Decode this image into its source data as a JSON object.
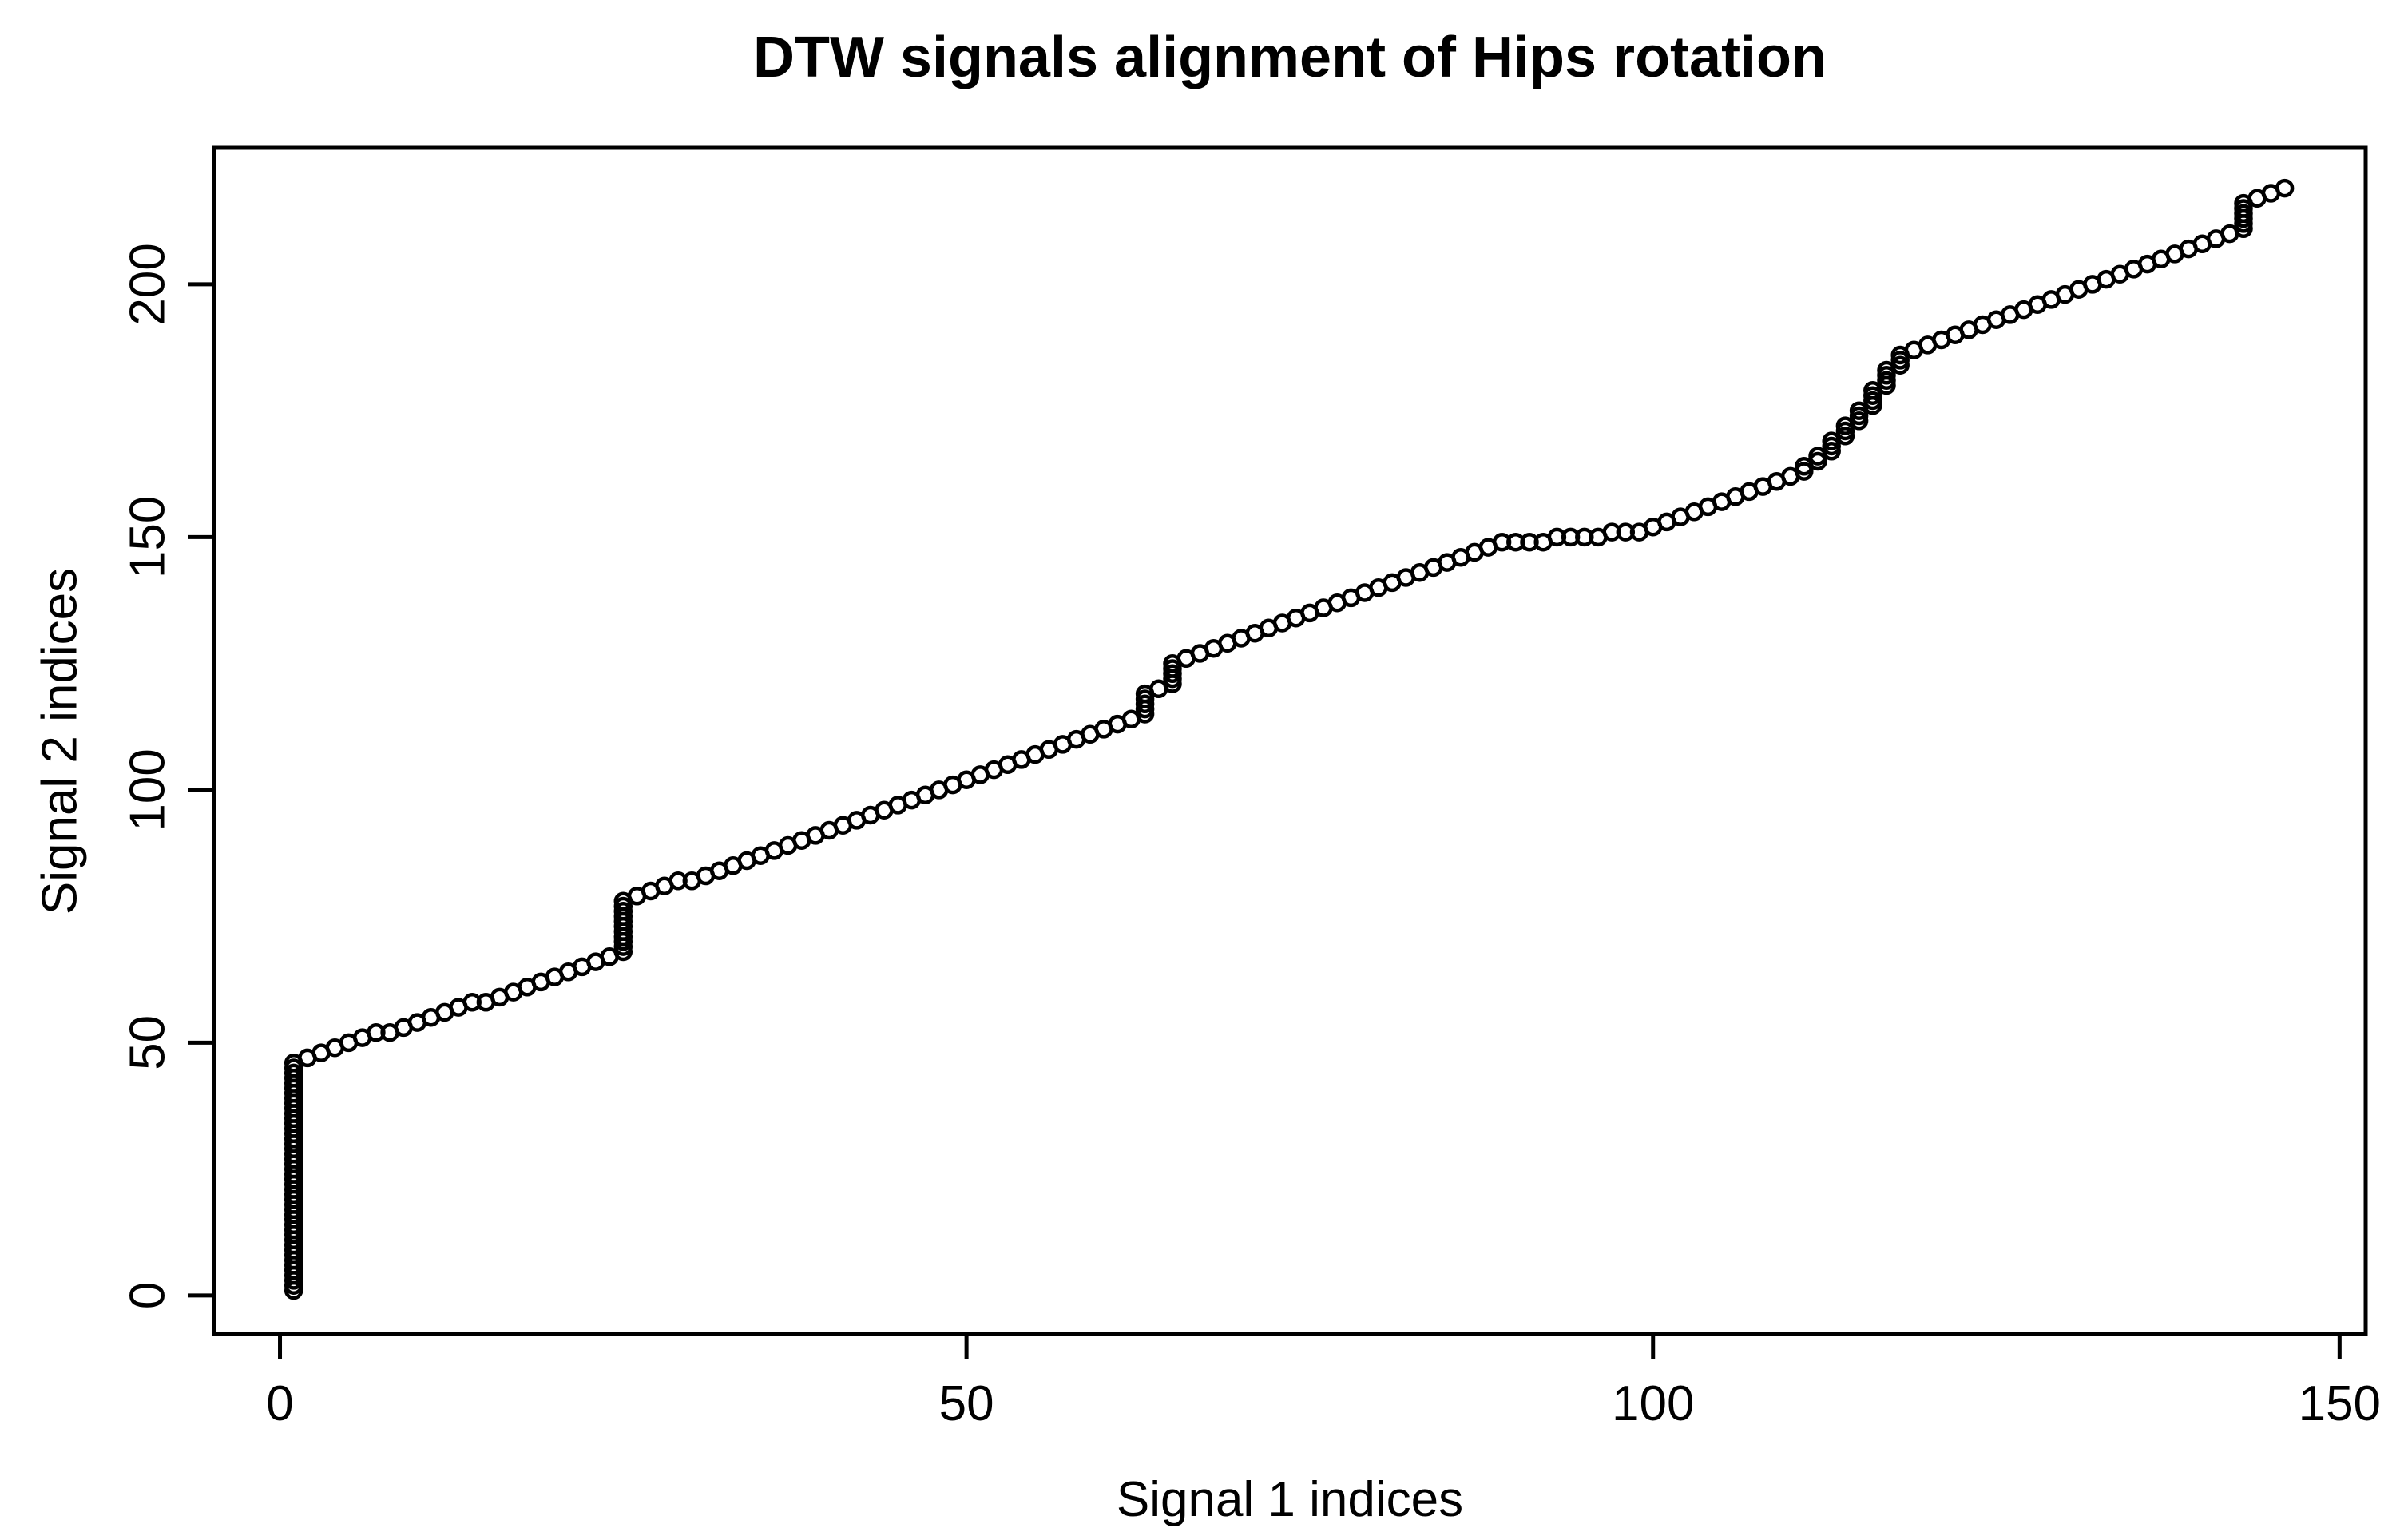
{
  "colors": {
    "foreground": "#000000",
    "background": "#ffffff"
  },
  "chart_data": {
    "type": "scatter",
    "title": "DTW signals alignment of Hips rotation",
    "xlabel": "Signal 1 indices",
    "ylabel": "Signal 2 indices",
    "marker": "open-circle",
    "marker_color": "#000000",
    "grid": false,
    "legend": "none",
    "x_ticks": [
      0,
      50,
      100,
      150
    ],
    "x_tick_labels": [
      "0",
      "50",
      "100",
      "150"
    ],
    "y_ticks": [
      0,
      50,
      100,
      150,
      200
    ],
    "y_tick_labels": [
      "0",
      "50",
      "100",
      "150",
      "200"
    ],
    "xlim": [
      -4.8,
      151.9
    ],
    "ylim": [
      -7.6,
      227.0
    ],
    "points_rle_format": "[signal1_index, signal2_index_start, signal2_index_end]",
    "points_rle": [
      [
        1,
        1,
        46
      ],
      [
        2,
        47,
        47
      ],
      [
        3,
        48,
        48
      ],
      [
        4,
        49,
        49
      ],
      [
        5,
        50,
        50
      ],
      [
        6,
        51,
        51
      ],
      [
        7,
        52,
        52
      ],
      [
        8,
        52,
        52
      ],
      [
        9,
        53,
        53
      ],
      [
        10,
        54,
        54
      ],
      [
        11,
        55,
        55
      ],
      [
        12,
        56,
        56
      ],
      [
        13,
        57,
        57
      ],
      [
        14,
        58,
        58
      ],
      [
        15,
        58,
        58
      ],
      [
        16,
        59,
        59
      ],
      [
        17,
        60,
        60
      ],
      [
        18,
        61,
        61
      ],
      [
        19,
        62,
        62
      ],
      [
        20,
        63,
        63
      ],
      [
        21,
        64,
        64
      ],
      [
        22,
        65,
        65
      ],
      [
        23,
        66,
        66
      ],
      [
        24,
        67,
        67
      ],
      [
        25,
        68,
        78
      ],
      [
        26,
        79,
        79
      ],
      [
        27,
        80,
        80
      ],
      [
        28,
        81,
        81
      ],
      [
        29,
        82,
        82
      ],
      [
        30,
        82,
        82
      ],
      [
        31,
        83,
        83
      ],
      [
        32,
        84,
        84
      ],
      [
        33,
        85,
        85
      ],
      [
        34,
        86,
        86
      ],
      [
        35,
        87,
        87
      ],
      [
        36,
        88,
        88
      ],
      [
        37,
        89,
        89
      ],
      [
        38,
        90,
        90
      ],
      [
        39,
        91,
        91
      ],
      [
        40,
        92,
        92
      ],
      [
        41,
        93,
        93
      ],
      [
        42,
        94,
        94
      ],
      [
        43,
        95,
        95
      ],
      [
        44,
        96,
        96
      ],
      [
        45,
        97,
        97
      ],
      [
        46,
        98,
        98
      ],
      [
        47,
        99,
        99
      ],
      [
        48,
        100,
        100
      ],
      [
        49,
        101,
        101
      ],
      [
        50,
        102,
        102
      ],
      [
        51,
        103,
        103
      ],
      [
        52,
        104,
        104
      ],
      [
        53,
        105,
        105
      ],
      [
        54,
        106,
        106
      ],
      [
        55,
        107,
        107
      ],
      [
        56,
        108,
        108
      ],
      [
        57,
        109,
        109
      ],
      [
        58,
        110,
        110
      ],
      [
        59,
        111,
        111
      ],
      [
        60,
        112,
        112
      ],
      [
        61,
        113,
        113
      ],
      [
        62,
        114,
        114
      ],
      [
        63,
        115,
        119
      ],
      [
        64,
        120,
        120
      ],
      [
        65,
        121,
        125
      ],
      [
        66,
        126,
        126
      ],
      [
        67,
        127,
        127
      ],
      [
        68,
        128,
        128
      ],
      [
        69,
        129,
        129
      ],
      [
        70,
        130,
        130
      ],
      [
        71,
        131,
        131
      ],
      [
        72,
        132,
        132
      ],
      [
        73,
        133,
        133
      ],
      [
        74,
        134,
        134
      ],
      [
        75,
        135,
        135
      ],
      [
        76,
        136,
        136
      ],
      [
        77,
        137,
        137
      ],
      [
        78,
        138,
        138
      ],
      [
        79,
        139,
        139
      ],
      [
        80,
        140,
        140
      ],
      [
        81,
        141,
        141
      ],
      [
        82,
        142,
        142
      ],
      [
        83,
        143,
        143
      ],
      [
        84,
        144,
        144
      ],
      [
        85,
        145,
        145
      ],
      [
        86,
        146,
        146
      ],
      [
        87,
        147,
        147
      ],
      [
        88,
        148,
        148
      ],
      [
        89,
        149,
        149
      ],
      [
        90,
        149,
        149
      ],
      [
        91,
        149,
        149
      ],
      [
        92,
        149,
        149
      ],
      [
        93,
        150,
        150
      ],
      [
        94,
        150,
        150
      ],
      [
        95,
        150,
        150
      ],
      [
        96,
        150,
        150
      ],
      [
        97,
        151,
        151
      ],
      [
        98,
        151,
        151
      ],
      [
        99,
        151,
        151
      ],
      [
        100,
        152,
        152
      ],
      [
        101,
        153,
        153
      ],
      [
        102,
        154,
        154
      ],
      [
        103,
        155,
        155
      ],
      [
        104,
        156,
        156
      ],
      [
        105,
        157,
        157
      ],
      [
        106,
        158,
        158
      ],
      [
        107,
        159,
        159
      ],
      [
        108,
        160,
        160
      ],
      [
        109,
        161,
        161
      ],
      [
        110,
        162,
        162
      ],
      [
        111,
        163,
        164
      ],
      [
        112,
        165,
        166
      ],
      [
        113,
        167,
        169
      ],
      [
        114,
        170,
        172
      ],
      [
        115,
        173,
        175
      ],
      [
        116,
        176,
        179
      ],
      [
        117,
        180,
        183
      ],
      [
        118,
        184,
        186
      ],
      [
        119,
        187,
        187
      ],
      [
        120,
        188,
        188
      ],
      [
        121,
        189,
        189
      ],
      [
        122,
        190,
        190
      ],
      [
        123,
        191,
        191
      ],
      [
        124,
        192,
        192
      ],
      [
        125,
        193,
        193
      ],
      [
        126,
        194,
        194
      ],
      [
        127,
        195,
        195
      ],
      [
        128,
        196,
        196
      ],
      [
        129,
        197,
        197
      ],
      [
        130,
        198,
        198
      ],
      [
        131,
        199,
        199
      ],
      [
        132,
        200,
        200
      ],
      [
        133,
        201,
        201
      ],
      [
        134,
        202,
        202
      ],
      [
        135,
        203,
        203
      ],
      [
        136,
        204,
        204
      ],
      [
        137,
        205,
        205
      ],
      [
        138,
        206,
        206
      ],
      [
        139,
        207,
        207
      ],
      [
        140,
        208,
        208
      ],
      [
        141,
        209,
        209
      ],
      [
        142,
        210,
        210
      ],
      [
        143,
        211,
        216
      ],
      [
        144,
        217,
        217
      ],
      [
        145,
        218,
        218
      ],
      [
        146,
        219,
        219
      ]
    ]
  }
}
